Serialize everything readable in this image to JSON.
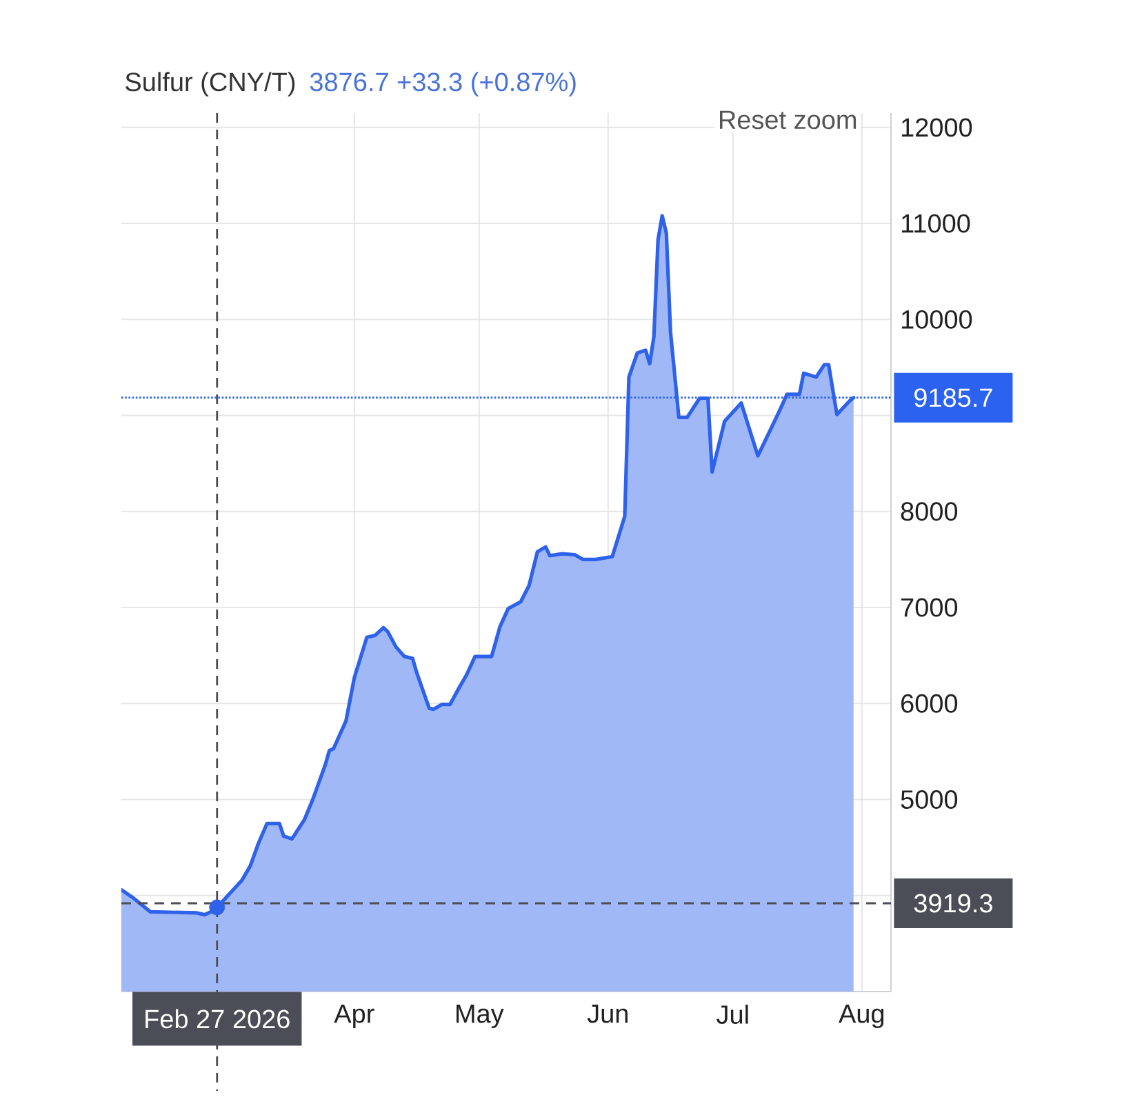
{
  "chart_data": {
    "type": "area",
    "title": "Sulfur (CNY/T)",
    "subtitle": "3876.7 +33.3 (+0.87%)",
    "annotations": [
      "Reset zoom"
    ],
    "xlim": [
      "2026-02-04",
      "2026-08-08"
    ],
    "xticks": [
      {
        "value": "2026-04-01",
        "label": "Apr"
      },
      {
        "value": "2026-05-01",
        "label": "May"
      },
      {
        "value": "2026-06-01",
        "label": "Jun"
      },
      {
        "value": "2026-07-01",
        "label": "Jul"
      },
      {
        "value": "2026-08-01",
        "label": "Aug"
      }
    ],
    "ylim": [
      3000,
      12150
    ],
    "yticks": [
      {
        "value": 4000,
        "label": null
      },
      5000,
      6000,
      7000,
      8000,
      {
        "value": 9000,
        "label": null
      },
      10000,
      11000,
      12000
    ],
    "grid": true,
    "series": [
      {
        "color": "#2f62ea",
        "x": [
          "2026-02-04",
          "2026-02-07",
          "2026-02-09",
          "2026-02-11",
          "2026-02-22",
          "2026-02-24",
          "2026-02-26",
          "2026-02-27",
          "2026-03-05",
          "2026-03-07",
          "2026-03-09",
          "2026-03-11",
          "2026-03-14",
          "2026-03-15",
          "2026-03-17",
          "2026-03-20",
          "2026-03-22",
          "2026-03-25",
          "2026-03-26",
          "2026-03-27",
          "2026-03-30",
          "2026-04-01",
          "2026-04-04",
          "2026-04-06",
          "2026-04-08",
          "2026-04-09",
          "2026-04-11",
          "2026-04-13",
          "2026-04-15",
          "2026-04-16",
          "2026-04-19",
          "2026-04-20",
          "2026-04-22",
          "2026-04-24",
          "2026-04-26",
          "2026-04-28",
          "2026-04-30",
          "2026-05-04",
          "2026-05-06",
          "2026-05-08",
          "2026-05-11",
          "2026-05-13",
          "2026-05-15",
          "2026-05-17",
          "2026-05-18",
          "2026-05-21",
          "2026-05-24",
          "2026-05-26",
          "2026-05-29",
          "2026-06-02",
          "2026-06-05",
          "2026-06-06",
          "2026-06-08",
          "2026-06-10",
          "2026-06-11",
          "2026-06-12",
          "2026-06-13",
          "2026-06-14",
          "2026-06-15",
          "2026-06-16",
          "2026-06-18",
          "2026-06-20",
          "2026-06-23",
          "2026-06-25",
          "2026-06-26",
          "2026-06-29",
          "2026-07-03",
          "2026-07-07",
          "2026-07-12",
          "2026-07-14",
          "2026-07-17",
          "2026-07-18",
          "2026-07-21",
          "2026-07-23",
          "2026-07-24",
          "2026-07-26",
          "2026-07-29",
          "2026-07-30"
        ],
        "values": [
          4060,
          3970,
          3900,
          3830,
          3820,
          3800,
          3840,
          3876.7,
          4160,
          4310,
          4550,
          4750,
          4750,
          4620,
          4590,
          4790,
          5000,
          5360,
          5510,
          5530,
          5820,
          6270,
          6690,
          6710,
          6790,
          6750,
          6590,
          6490,
          6470,
          6320,
          5950,
          5940,
          5990,
          5990,
          6150,
          6300,
          6490,
          6490,
          6800,
          6990,
          7060,
          7230,
          7580,
          7630,
          7540,
          7560,
          7550,
          7500,
          7500,
          7530,
          7950,
          9400,
          9650,
          9680,
          9540,
          9820,
          10830,
          11080,
          10900,
          9870,
          8980,
          8980,
          9180,
          9180,
          8410,
          8940,
          9130,
          8580,
          9030,
          9220,
          9220,
          9440,
          9400,
          9530,
          9530,
          9010,
          9150,
          9185.7
        ]
      },
      {
        "type": "scatter",
        "color": "#2f62ea",
        "marker": "circle",
        "x": [
          "2026-02-27"
        ],
        "values": [
          3876.7
        ]
      }
    ],
    "ref_lines": [
      {
        "axis": "x",
        "value": "2026-02-27",
        "label": "Feb 27 2026",
        "color": "#4b4e56",
        "line_style": "dashed"
      },
      {
        "axis": "y",
        "value": 3919.3,
        "label": "3919.3",
        "color": "#4b4e56",
        "line_style": "dashed"
      },
      {
        "axis": "y",
        "value": 9185.7,
        "label": "9185.7",
        "color": "#2b63f0",
        "line_style": "dotted"
      }
    ]
  }
}
